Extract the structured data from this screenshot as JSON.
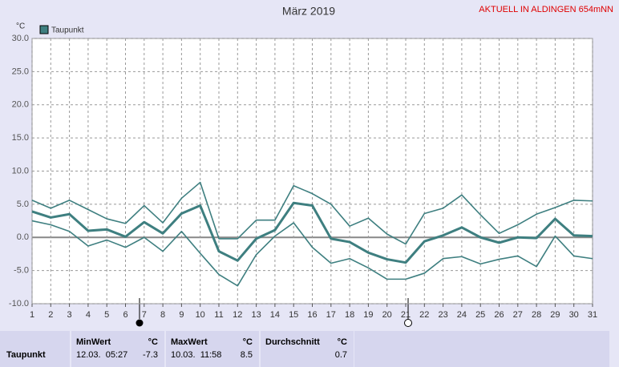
{
  "chart_data": {
    "type": "line",
    "title": "März 2019",
    "subtitle": "AKTUELL IN ALDINGEN 654mNN",
    "y_label": "°C",
    "x": [
      1,
      2,
      3,
      4,
      5,
      6,
      7,
      8,
      9,
      10,
      11,
      12,
      13,
      14,
      15,
      16,
      17,
      18,
      19,
      20,
      21,
      22,
      23,
      24,
      25,
      26,
      27,
      28,
      29,
      30,
      31
    ],
    "xlim": [
      1,
      31
    ],
    "xticks": [
      1,
      2,
      3,
      4,
      5,
      6,
      7,
      8,
      9,
      10,
      11,
      12,
      13,
      14,
      15,
      16,
      17,
      18,
      19,
      20,
      21,
      22,
      23,
      24,
      25,
      26,
      27,
      28,
      29,
      30,
      31
    ],
    "ylim": [
      -10,
      30
    ],
    "yticks": [
      {
        "value": -10,
        "label": "-10.0"
      },
      {
        "value": -5,
        "label": "-5.0"
      },
      {
        "value": 0,
        "label": "0.0"
      },
      {
        "value": 5,
        "label": "5.0"
      },
      {
        "value": 10,
        "label": "10.0"
      },
      {
        "value": 15,
        "label": "15.0"
      },
      {
        "value": 20,
        "label": "20.0"
      },
      {
        "value": 25,
        "label": "25.0"
      },
      {
        "value": 30,
        "label": "30.0"
      }
    ],
    "grid": true,
    "series": [
      {
        "color": "#3e7f80",
        "values": [
          5.6,
          4.4,
          5.6,
          4.2,
          2.8,
          2.1,
          4.8,
          2.2,
          5.9,
          8.3,
          -0.2,
          -0.2,
          2.6,
          2.6,
          7.8,
          6.6,
          5.0,
          1.7,
          2.9,
          0.5,
          -1.0,
          3.6,
          4.4,
          6.4,
          3.4,
          0.6,
          1.9,
          3.5,
          4.5,
          5.6,
          5.5
        ]
      },
      {
        "name": "Taupunkt",
        "color": "#3e7f80",
        "values": [
          3.9,
          3.0,
          3.5,
          1.0,
          1.2,
          0.1,
          2.3,
          0.6,
          3.6,
          4.8,
          -2.1,
          -3.5,
          -0.2,
          1.1,
          5.2,
          4.8,
          -0.2,
          -0.7,
          -2.3,
          -3.3,
          -3.8,
          -0.6,
          0.3,
          1.5,
          0.0,
          -0.8,
          0.0,
          -0.1,
          2.8,
          0.3,
          0.2
        ]
      },
      {
        "color": "#3e7f80",
        "values": [
          2.5,
          1.9,
          0.9,
          -1.3,
          -0.4,
          -1.5,
          0.0,
          -2.1,
          0.9,
          -2.4,
          -5.6,
          -7.3,
          -2.6,
          0.2,
          2.2,
          -1.5,
          -3.9,
          -3.2,
          -4.6,
          -6.3,
          -6.3,
          -5.4,
          -3.2,
          -2.9,
          -4.0,
          -3.3,
          -2.8,
          -4.4,
          0.2,
          -2.8,
          -3.2
        ]
      }
    ]
  },
  "stats_table": {
    "row_label": "Taupunkt",
    "columns": [
      {
        "header": "MinWert",
        "unit": "°C",
        "time": "12.03.  05:27",
        "value": -7.3
      },
      {
        "header": "MaxWert",
        "unit": "°C",
        "time": "10.03.  11:58",
        "value": 8.5
      },
      {
        "header": "Durchschnitt",
        "unit": "°C",
        "value": 0.7
      }
    ]
  }
}
